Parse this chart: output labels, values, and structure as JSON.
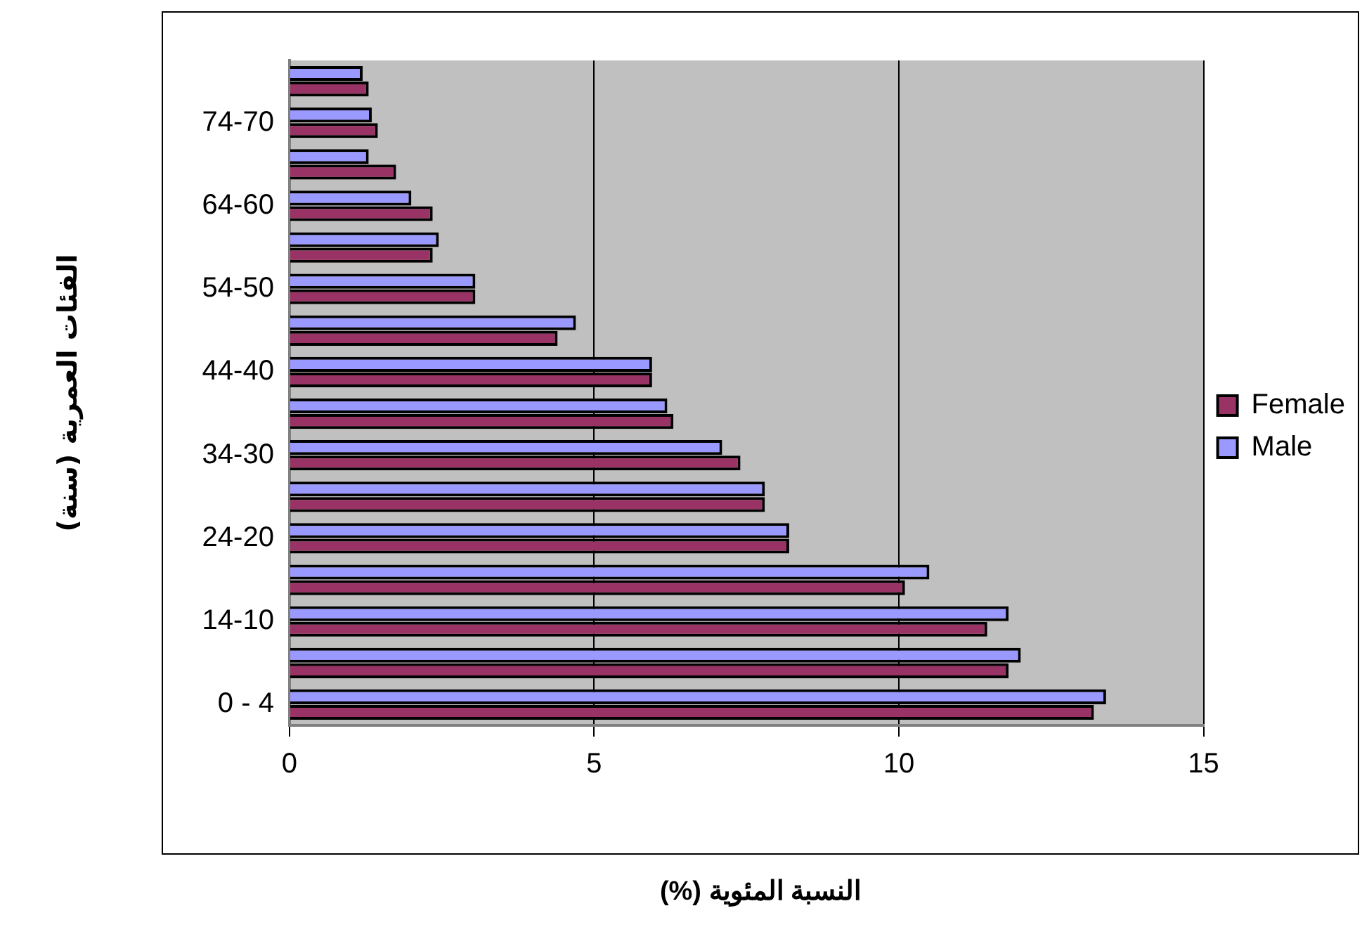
{
  "chart_data": {
    "type": "bar",
    "orientation": "horizontal",
    "xlabel": "النسبة المئوية (%)",
    "ylabel": "الفئات العمرية (سنة)",
    "categories": [
      null,
      "74-70",
      null,
      "64-60",
      null,
      "54-50",
      null,
      "44-40",
      null,
      "34-30",
      null,
      "24-20",
      null,
      "14-10",
      null,
      "0 - 4"
    ],
    "series": [
      {
        "name": "Female",
        "color": "#993366",
        "values": [
          1.3,
          1.45,
          1.75,
          2.35,
          2.35,
          3.05,
          4.4,
          5.95,
          6.3,
          7.4,
          7.8,
          8.2,
          10.1,
          11.45,
          11.8,
          13.2
        ]
      },
      {
        "name": "Male",
        "color": "#9999ff",
        "values": [
          1.2,
          1.35,
          1.3,
          2.0,
          2.45,
          3.05,
          4.7,
          5.95,
          6.2,
          7.1,
          7.8,
          8.2,
          10.5,
          11.8,
          12.0,
          13.4
        ]
      }
    ],
    "xlim": [
      0,
      15
    ],
    "xticks": [
      0,
      5,
      10,
      15
    ],
    "grid": "x",
    "legend": "right"
  }
}
